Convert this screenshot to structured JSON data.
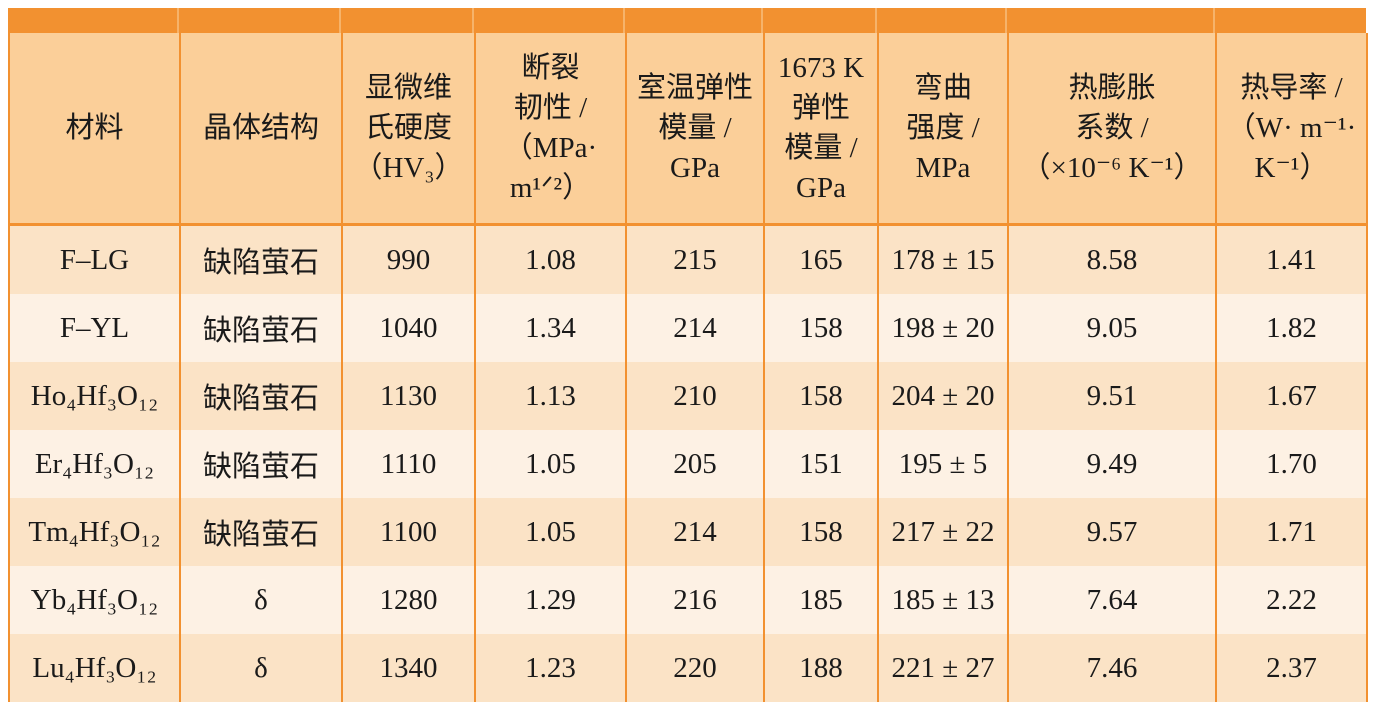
{
  "headers": [
    {
      "lines": [
        "材料"
      ]
    },
    {
      "lines": [
        "晶体结构"
      ]
    },
    {
      "lines": [
        "显微维",
        "氏硬度",
        "（HV₃）"
      ]
    },
    {
      "lines": [
        "断裂",
        "韧性 /",
        "（MPa·",
        "m¹ᐟ²）"
      ]
    },
    {
      "lines": [
        "室温弹性",
        "模量 /",
        "GPa"
      ]
    },
    {
      "lines": [
        "1673 K",
        "弹性",
        "模量 /",
        "GPa"
      ]
    },
    {
      "lines": [
        "弯曲",
        "强度 /",
        "MPa"
      ]
    },
    {
      "lines": [
        "热膨胀",
        "系数 /",
        "（×10⁻⁶ K⁻¹）"
      ]
    },
    {
      "lines": [
        "热导率 /",
        "（W· m⁻¹·",
        "K⁻¹）"
      ]
    }
  ],
  "rows": [
    {
      "material": "F–LG",
      "structure": "缺陷萤石",
      "hardness": "990",
      "toughness": "1.08",
      "modulus_rt": "215",
      "modulus_1673": "165",
      "strength": "178 ± 15",
      "cte": "8.58",
      "conductivity": "1.41"
    },
    {
      "material": "F–YL",
      "structure": "缺陷萤石",
      "hardness": "1040",
      "toughness": "1.34",
      "modulus_rt": "214",
      "modulus_1673": "158",
      "strength": "198 ± 20",
      "cte": "9.05",
      "conductivity": "1.82"
    },
    {
      "material": "Ho₄Hf₃O₁₂",
      "structure": "缺陷萤石",
      "hardness": "1130",
      "toughness": "1.13",
      "modulus_rt": "210",
      "modulus_1673": "158",
      "strength": "204 ± 20",
      "cte": "9.51",
      "conductivity": "1.67"
    },
    {
      "material": "Er₄Hf₃O₁₂",
      "structure": "缺陷萤石",
      "hardness": "1110",
      "toughness": "1.05",
      "modulus_rt": "205",
      "modulus_1673": "151",
      "strength": "195 ± 5",
      "cte": "9.49",
      "conductivity": "1.70"
    },
    {
      "material": "Tm₄Hf₃O₁₂",
      "structure": "缺陷萤石",
      "hardness": "1100",
      "toughness": "1.05",
      "modulus_rt": "214",
      "modulus_1673": "158",
      "strength": "217 ± 22",
      "cte": "9.57",
      "conductivity": "1.71"
    },
    {
      "material": "Yb₄Hf₃O₁₂",
      "structure": "δ",
      "hardness": "1280",
      "toughness": "1.29",
      "modulus_rt": "216",
      "modulus_1673": "185",
      "strength": "185 ± 13",
      "cte": "7.64",
      "conductivity": "2.22"
    },
    {
      "material": "Lu₄Hf₃O₁₂",
      "structure": "δ",
      "hardness": "1340",
      "toughness": "1.23",
      "modulus_rt": "220",
      "modulus_1673": "188",
      "strength": "221 ± 27",
      "cte": "7.46",
      "conductivity": "2.37"
    }
  ],
  "colors": {
    "accent": "#f29130",
    "header_bg": "#fbcf99",
    "row_odd": "#fbe3c6",
    "row_even": "#fdf1e4"
  }
}
